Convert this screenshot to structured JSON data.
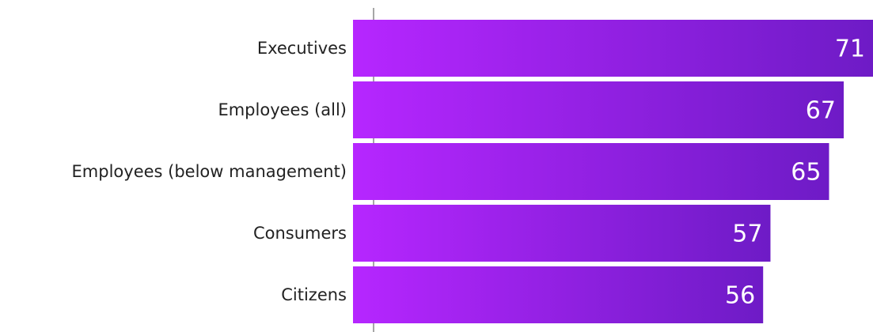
{
  "chart_data": {
    "type": "hbar",
    "categories": [
      "Executives",
      "Employees (all)",
      "Employees (below management)",
      "Consumers",
      "Citizens"
    ],
    "values": [
      71,
      67,
      65,
      57,
      56
    ],
    "colors": [
      "#b626ff",
      "#6e1bc6"
    ]
  }
}
